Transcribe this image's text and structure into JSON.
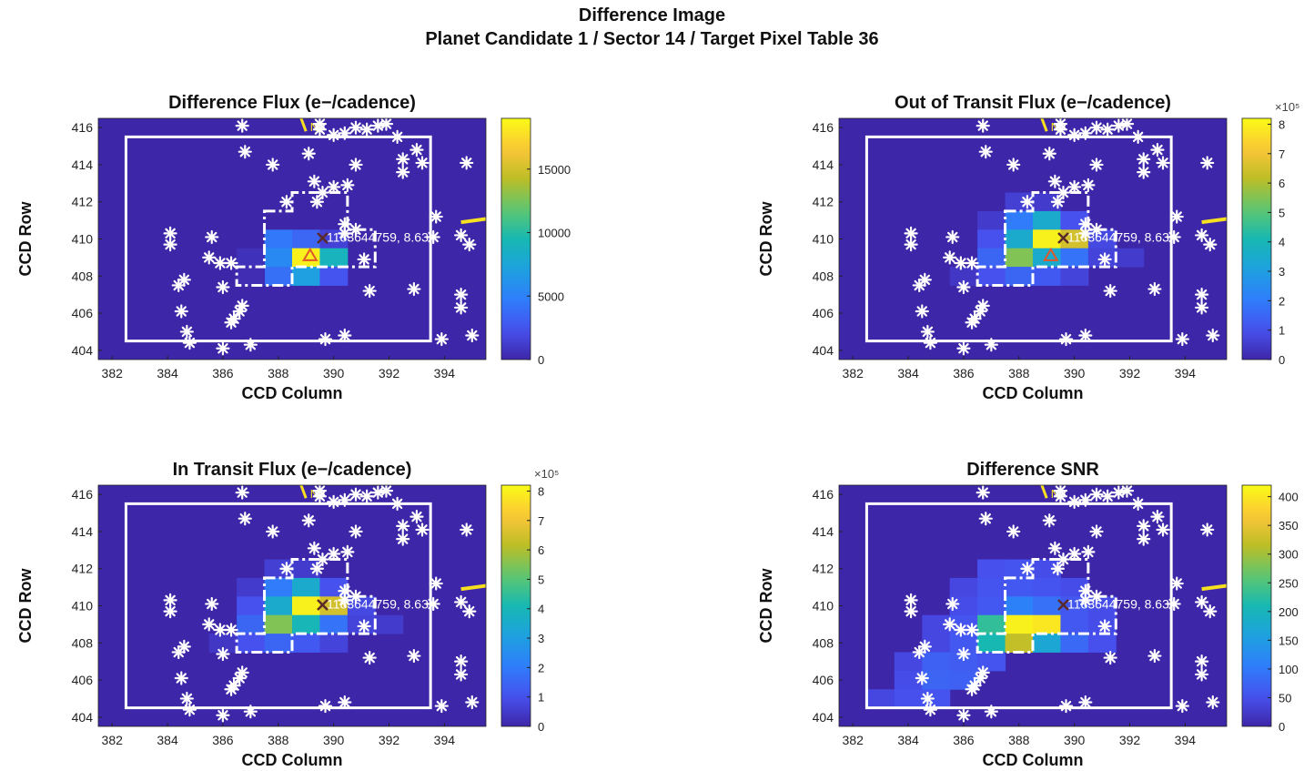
{
  "figure": {
    "title_line1": "Difference Image",
    "title_line2": "Planet Candidate 1 / Sector 14 / Target Pixel Table 36"
  },
  "colors": {
    "background_pixel": "#3e26a8",
    "aperture": "#ffffff",
    "north_arrow": "#f7e01f",
    "star_marker": "#ffffff",
    "target_x_marker": "#5a2a2a",
    "centroid_triangle": "#e0582a",
    "colormap": "parula"
  },
  "north_label": "N",
  "target_label": "1183644759, 8.63",
  "chart_data": [
    {
      "id": "difference-flux",
      "type": "heatmap",
      "title": "Difference Flux (e−/cadence)",
      "xlabel": "CCD Column",
      "ylabel": "CCD Row",
      "xlim": [
        381.5,
        395.5
      ],
      "ylim": [
        403.5,
        416.5
      ],
      "xticks": [
        "382",
        "384",
        "386",
        "388",
        "390",
        "392",
        "394"
      ],
      "yticks": [
        "404",
        "406",
        "408",
        "410",
        "412",
        "414",
        "416"
      ],
      "colorbar": {
        "min": 0,
        "max": 19000,
        "ticks": [
          "0",
          "5000",
          "10000",
          "15000"
        ],
        "tick_values": [
          0,
          5000,
          10000,
          15000
        ],
        "exponent": ""
      },
      "has_centroid_triangle": true,
      "pixels": [
        {
          "col": 388,
          "row": 410,
          "value": 4500
        },
        {
          "col": 389,
          "row": 410,
          "value": 3500
        },
        {
          "col": 390,
          "row": 410,
          "value": 1500
        },
        {
          "col": 388,
          "row": 409,
          "value": 5500
        },
        {
          "col": 389,
          "row": 409,
          "value": 18500
        },
        {
          "col": 390,
          "row": 409,
          "value": 9000
        },
        {
          "col": 388,
          "row": 408,
          "value": 4000
        },
        {
          "col": 389,
          "row": 408,
          "value": 7000
        },
        {
          "col": 390,
          "row": 408,
          "value": 2500
        },
        {
          "col": 387,
          "row": 409,
          "value": 600
        },
        {
          "col": 387,
          "row": 408,
          "value": 400
        }
      ]
    },
    {
      "id": "out-of-transit-flux",
      "type": "heatmap",
      "title": "Out of Transit Flux (e−/cadence)",
      "xlabel": "CCD Column",
      "ylabel": "CCD Row",
      "xlim": [
        381.5,
        395.5
      ],
      "ylim": [
        403.5,
        416.5
      ],
      "xticks": [
        "382",
        "384",
        "386",
        "388",
        "390",
        "392",
        "394"
      ],
      "yticks": [
        "404",
        "406",
        "408",
        "410",
        "412",
        "414",
        "416"
      ],
      "colorbar": {
        "min": 0,
        "max": 8.2,
        "ticks": [
          "0",
          "1",
          "2",
          "3",
          "4",
          "5",
          "6",
          "7",
          "8"
        ],
        "tick_values": [
          0,
          1,
          2,
          3,
          4,
          5,
          6,
          7,
          8
        ],
        "exponent": "×10⁵"
      },
      "has_centroid_triangle": true,
      "pixels": [
        {
          "col": 388,
          "row": 412,
          "value": 0.6
        },
        {
          "col": 389,
          "row": 412,
          "value": 0.5
        },
        {
          "col": 387,
          "row": 411,
          "value": 0.5
        },
        {
          "col": 388,
          "row": 411,
          "value": 2.0
        },
        {
          "col": 389,
          "row": 411,
          "value": 3.5
        },
        {
          "col": 390,
          "row": 411,
          "value": 1.0
        },
        {
          "col": 387,
          "row": 410,
          "value": 1.0
        },
        {
          "col": 388,
          "row": 410,
          "value": 3.5
        },
        {
          "col": 389,
          "row": 410,
          "value": 8.0
        },
        {
          "col": 390,
          "row": 410,
          "value": 6.5
        },
        {
          "col": 391,
          "row": 410,
          "value": 0.8
        },
        {
          "col": 387,
          "row": 409,
          "value": 1.5
        },
        {
          "col": 388,
          "row": 409,
          "value": 5.5
        },
        {
          "col": 389,
          "row": 409,
          "value": 3.5
        },
        {
          "col": 390,
          "row": 409,
          "value": 1.8
        },
        {
          "col": 391,
          "row": 409,
          "value": 0.7
        },
        {
          "col": 392,
          "row": 409,
          "value": 0.5
        },
        {
          "col": 387,
          "row": 408,
          "value": 1.0
        },
        {
          "col": 388,
          "row": 408,
          "value": 1.5
        },
        {
          "col": 389,
          "row": 408,
          "value": 1.2
        },
        {
          "col": 390,
          "row": 408,
          "value": 0.7
        },
        {
          "col": 386,
          "row": 408,
          "value": 0.4
        }
      ]
    },
    {
      "id": "in-transit-flux",
      "type": "heatmap",
      "title": "In Transit Flux (e−/cadence)",
      "xlabel": "CCD Column",
      "ylabel": "CCD Row",
      "xlim": [
        381.5,
        395.5
      ],
      "ylim": [
        403.5,
        416.5
      ],
      "xticks": [
        "382",
        "384",
        "386",
        "388",
        "390",
        "392",
        "394"
      ],
      "yticks": [
        "404",
        "406",
        "408",
        "410",
        "412",
        "414",
        "416"
      ],
      "colorbar": {
        "min": 0,
        "max": 8.2,
        "ticks": [
          "0",
          "1",
          "2",
          "3",
          "4",
          "5",
          "6",
          "7",
          "8"
        ],
        "tick_values": [
          0,
          1,
          2,
          3,
          4,
          5,
          6,
          7,
          8
        ],
        "exponent": "×10⁵"
      },
      "has_centroid_triangle": false,
      "pixels": [
        {
          "col": 388,
          "row": 412,
          "value": 0.6
        },
        {
          "col": 389,
          "row": 412,
          "value": 0.5
        },
        {
          "col": 387,
          "row": 411,
          "value": 0.5
        },
        {
          "col": 388,
          "row": 411,
          "value": 2.0
        },
        {
          "col": 389,
          "row": 411,
          "value": 3.5
        },
        {
          "col": 390,
          "row": 411,
          "value": 1.0
        },
        {
          "col": 387,
          "row": 410,
          "value": 1.0
        },
        {
          "col": 388,
          "row": 410,
          "value": 3.5
        },
        {
          "col": 389,
          "row": 410,
          "value": 8.0
        },
        {
          "col": 390,
          "row": 410,
          "value": 6.5
        },
        {
          "col": 391,
          "row": 410,
          "value": 0.8
        },
        {
          "col": 387,
          "row": 409,
          "value": 1.5
        },
        {
          "col": 388,
          "row": 409,
          "value": 5.5
        },
        {
          "col": 389,
          "row": 409,
          "value": 4.0
        },
        {
          "col": 390,
          "row": 409,
          "value": 1.8
        },
        {
          "col": 391,
          "row": 409,
          "value": 0.7
        },
        {
          "col": 392,
          "row": 409,
          "value": 0.5
        },
        {
          "col": 387,
          "row": 408,
          "value": 1.0
        },
        {
          "col": 388,
          "row": 408,
          "value": 1.5
        },
        {
          "col": 389,
          "row": 408,
          "value": 1.2
        },
        {
          "col": 390,
          "row": 408,
          "value": 0.7
        },
        {
          "col": 386,
          "row": 408,
          "value": 0.4
        }
      ]
    },
    {
      "id": "difference-snr",
      "type": "heatmap",
      "title": "Difference SNR",
      "xlabel": "CCD Column",
      "ylabel": "CCD Row",
      "xlim": [
        381.5,
        395.5
      ],
      "ylim": [
        403.5,
        416.5
      ],
      "xticks": [
        "382",
        "384",
        "386",
        "388",
        "390",
        "392",
        "394"
      ],
      "yticks": [
        "404",
        "406",
        "408",
        "410",
        "412",
        "414",
        "416"
      ],
      "colorbar": {
        "min": 0,
        "max": 420,
        "ticks": [
          "0",
          "50",
          "100",
          "150",
          "200",
          "250",
          "300",
          "350",
          "400"
        ],
        "tick_values": [
          0,
          50,
          100,
          150,
          200,
          250,
          300,
          350,
          400
        ],
        "exponent": ""
      },
      "has_centroid_triangle": false,
      "pixels": [
        {
          "col": 387,
          "row": 412,
          "value": 50
        },
        {
          "col": 388,
          "row": 412,
          "value": 55
        },
        {
          "col": 389,
          "row": 412,
          "value": 45
        },
        {
          "col": 386,
          "row": 411,
          "value": 40
        },
        {
          "col": 387,
          "row": 411,
          "value": 55
        },
        {
          "col": 388,
          "row": 411,
          "value": 60
        },
        {
          "col": 389,
          "row": 411,
          "value": 55
        },
        {
          "col": 390,
          "row": 411,
          "value": 45
        },
        {
          "col": 386,
          "row": 410,
          "value": 45
        },
        {
          "col": 387,
          "row": 410,
          "value": 60
        },
        {
          "col": 388,
          "row": 410,
          "value": 110
        },
        {
          "col": 389,
          "row": 410,
          "value": 90
        },
        {
          "col": 390,
          "row": 410,
          "value": 60
        },
        {
          "col": 391,
          "row": 410,
          "value": 45
        },
        {
          "col": 385,
          "row": 409,
          "value": 40
        },
        {
          "col": 386,
          "row": 409,
          "value": 55
        },
        {
          "col": 387,
          "row": 409,
          "value": 230
        },
        {
          "col": 388,
          "row": 409,
          "value": 410
        },
        {
          "col": 389,
          "row": 409,
          "value": 400
        },
        {
          "col": 390,
          "row": 409,
          "value": 60
        },
        {
          "col": 391,
          "row": 409,
          "value": 45
        },
        {
          "col": 385,
          "row": 408,
          "value": 40
        },
        {
          "col": 386,
          "row": 408,
          "value": 60
        },
        {
          "col": 387,
          "row": 408,
          "value": 210
        },
        {
          "col": 388,
          "row": 408,
          "value": 320
        },
        {
          "col": 389,
          "row": 408,
          "value": 170
        },
        {
          "col": 390,
          "row": 408,
          "value": 80
        },
        {
          "col": 391,
          "row": 408,
          "value": 50
        },
        {
          "col": 384,
          "row": 407,
          "value": 40
        },
        {
          "col": 385,
          "row": 407,
          "value": 70
        },
        {
          "col": 386,
          "row": 407,
          "value": 65
        },
        {
          "col": 387,
          "row": 407,
          "value": 55
        },
        {
          "col": 384,
          "row": 406,
          "value": 45
        },
        {
          "col": 385,
          "row": 406,
          "value": 75
        },
        {
          "col": 386,
          "row": 406,
          "value": 70
        },
        {
          "col": 383,
          "row": 405,
          "value": 40
        },
        {
          "col": 384,
          "row": 405,
          "value": 50
        },
        {
          "col": 385,
          "row": 405,
          "value": 55
        }
      ]
    }
  ],
  "stars": [
    [
      386.7,
      416.1
    ],
    [
      389.5,
      416.2
    ],
    [
      389.5,
      415.9
    ],
    [
      390.0,
      415.6
    ],
    [
      390.4,
      415.7
    ],
    [
      390.8,
      416.0
    ],
    [
      391.2,
      415.9
    ],
    [
      391.6,
      416.1
    ],
    [
      391.9,
      416.2
    ],
    [
      392.3,
      415.5
    ],
    [
      393.0,
      414.8
    ],
    [
      386.8,
      414.7
    ],
    [
      387.8,
      414.0
    ],
    [
      389.1,
      414.6
    ],
    [
      390.8,
      414.0
    ],
    [
      392.5,
      414.3
    ],
    [
      392.5,
      413.6
    ],
    [
      393.2,
      414.1
    ],
    [
      394.8,
      414.1
    ],
    [
      389.3,
      413.1
    ],
    [
      390.0,
      412.8
    ],
    [
      389.6,
      412.5
    ],
    [
      390.5,
      412.9
    ],
    [
      388.3,
      412.0
    ],
    [
      389.4,
      412.0
    ],
    [
      393.7,
      411.2
    ],
    [
      390.4,
      410.8
    ],
    [
      393.6,
      410.1
    ],
    [
      394.6,
      410.2
    ],
    [
      394.9,
      409.7
    ],
    [
      390.4,
      410.3
    ],
    [
      390.8,
      410.5
    ],
    [
      384.1,
      410.3
    ],
    [
      384.1,
      409.7
    ],
    [
      385.6,
      410.1
    ],
    [
      385.5,
      409.0
    ],
    [
      385.9,
      408.7
    ],
    [
      386.3,
      408.7
    ],
    [
      391.1,
      408.9
    ],
    [
      384.4,
      407.5
    ],
    [
      384.6,
      407.8
    ],
    [
      386.0,
      407.4
    ],
    [
      391.3,
      407.2
    ],
    [
      392.9,
      407.3
    ],
    [
      394.6,
      407.0
    ],
    [
      394.6,
      406.3
    ],
    [
      384.5,
      406.1
    ],
    [
      386.3,
      405.5
    ],
    [
      386.4,
      405.7
    ],
    [
      386.6,
      406.1
    ],
    [
      386.7,
      406.4
    ],
    [
      384.7,
      405.0
    ],
    [
      384.8,
      404.4
    ],
    [
      386.0,
      404.1
    ],
    [
      387.0,
      404.3
    ],
    [
      389.7,
      404.6
    ],
    [
      390.4,
      404.8
    ],
    [
      393.9,
      404.6
    ],
    [
      395.0,
      404.8
    ]
  ]
}
